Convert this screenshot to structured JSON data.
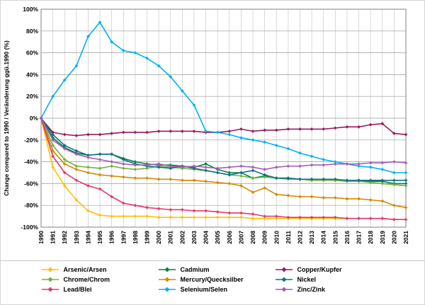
{
  "chart_data": {
    "type": "line",
    "title": "",
    "xlabel": "",
    "ylabel": "Change compared to 1990 / Veränderung ggü.1990 (%)",
    "ylim": [
      -100,
      100
    ],
    "ytick_step": 20,
    "ytick_suffix": "%",
    "grid": true,
    "legend_position": "bottom",
    "x": [
      "1990",
      "1991",
      "1992",
      "1993",
      "1994",
      "1995",
      "1996",
      "1997",
      "1998",
      "1999",
      "2000",
      "2001",
      "2002",
      "2003",
      "2004",
      "2005",
      "2006",
      "2007",
      "2008",
      "2009",
      "2010",
      "2011",
      "2012",
      "2013",
      "2014",
      "2015",
      "2016",
      "2017",
      "2018",
      "2019",
      "2020",
      "2021"
    ],
    "series": [
      {
        "name": "Arsenic/Arsen",
        "color": "#FFC000",
        "values": [
          0,
          -45,
          -62,
          -75,
          -85,
          -89,
          -90,
          -90,
          -90,
          -90,
          -91,
          -91,
          -91,
          -91,
          -91,
          -91,
          -91,
          -91,
          -92,
          -92,
          -92,
          -92,
          -92,
          -92,
          -92,
          -92,
          -92,
          -92,
          -92,
          -92,
          -93,
          -93
        ]
      },
      {
        "name": "Cadmium",
        "color": "#00843D",
        "values": [
          0,
          -18,
          -27,
          -32,
          -34,
          -33,
          -33,
          -37,
          -40,
          -42,
          -43,
          -43,
          -44,
          -45,
          -42,
          -47,
          -50,
          -50,
          -55,
          -53,
          -55,
          -55,
          -56,
          -56,
          -56,
          -57,
          -57,
          -57,
          -58,
          -58,
          -60,
          -60
        ]
      },
      {
        "name": "Copper/Kupfer",
        "color": "#971B5B",
        "values": [
          0,
          -13,
          -15,
          -16,
          -15,
          -15,
          -14,
          -13,
          -13,
          -13,
          -12,
          -12,
          -12,
          -12,
          -13,
          -13,
          -12,
          -10,
          -12,
          -11,
          -11,
          -10,
          -10,
          -10,
          -10,
          -9,
          -8,
          -8,
          -6,
          -5,
          -14,
          -15
        ]
      },
      {
        "name": "Chrome/Chrom",
        "color": "#76B043",
        "values": [
          0,
          -25,
          -38,
          -44,
          -45,
          -46,
          -44,
          -46,
          -47,
          -46,
          -44,
          -45,
          -46,
          -47,
          -48,
          -50,
          -52,
          -53,
          -55,
          -54,
          -55,
          -56,
          -56,
          -57,
          -57,
          -57,
          -58,
          -58,
          -59,
          -60,
          -61,
          -62
        ]
      },
      {
        "name": "Mercury/Quecksilber",
        "color": "#D18A00",
        "values": [
          0,
          -30,
          -42,
          -47,
          -50,
          -52,
          -53,
          -54,
          -55,
          -55,
          -56,
          -56,
          -57,
          -57,
          -58,
          -59,
          -60,
          -62,
          -68,
          -64,
          -70,
          -71,
          -72,
          -72,
          -73,
          -73,
          -74,
          -74,
          -75,
          -76,
          -80,
          -82
        ]
      },
      {
        "name": "Nickel",
        "color": "#0E7189",
        "values": [
          0,
          -15,
          -25,
          -30,
          -34,
          -33,
          -33,
          -38,
          -42,
          -44,
          -45,
          -46,
          -44,
          -46,
          -48,
          -50,
          -52,
          -50,
          -48,
          -52,
          -55,
          -55,
          -56,
          -56,
          -56,
          -56,
          -57,
          -57,
          -57,
          -57,
          -57,
          -57
        ]
      },
      {
        "name": "Lead/Blei",
        "color": "#E13A6F",
        "values": [
          0,
          -35,
          -50,
          -57,
          -62,
          -65,
          -72,
          -78,
          -80,
          -82,
          -83,
          -84,
          -84,
          -85,
          -85,
          -86,
          -87,
          -87,
          -88,
          -90,
          -90,
          -91,
          -91,
          -91,
          -91,
          -91,
          -92,
          -92,
          -92,
          -92,
          -93,
          -93
        ]
      },
      {
        "name": "Selenium/Selen",
        "color": "#00B0F0",
        "values": [
          0,
          20,
          35,
          48,
          75,
          88,
          70,
          62,
          60,
          55,
          48,
          38,
          25,
          12,
          -12,
          -13,
          -15,
          -18,
          -20,
          -22,
          -25,
          -28,
          -32,
          -35,
          -38,
          -40,
          -42,
          -44,
          -45,
          -47,
          -50,
          -50
        ]
      },
      {
        "name": "Zinc/Zink",
        "color": "#A35EB5",
        "values": [
          0,
          -20,
          -28,
          -33,
          -36,
          -38,
          -40,
          -42,
          -43,
          -43,
          -42,
          -44,
          -45,
          -44,
          -45,
          -46,
          -45,
          -44,
          -45,
          -47,
          -45,
          -44,
          -44,
          -43,
          -43,
          -42,
          -42,
          -42,
          -41,
          -41,
          -40,
          -41
        ]
      }
    ]
  },
  "style": {
    "grid_vertical_color": "#c9c9c9",
    "grid_horizontal_color": "#9a9a9a",
    "plot_border_color": "#808080",
    "text_color": "#000000"
  }
}
